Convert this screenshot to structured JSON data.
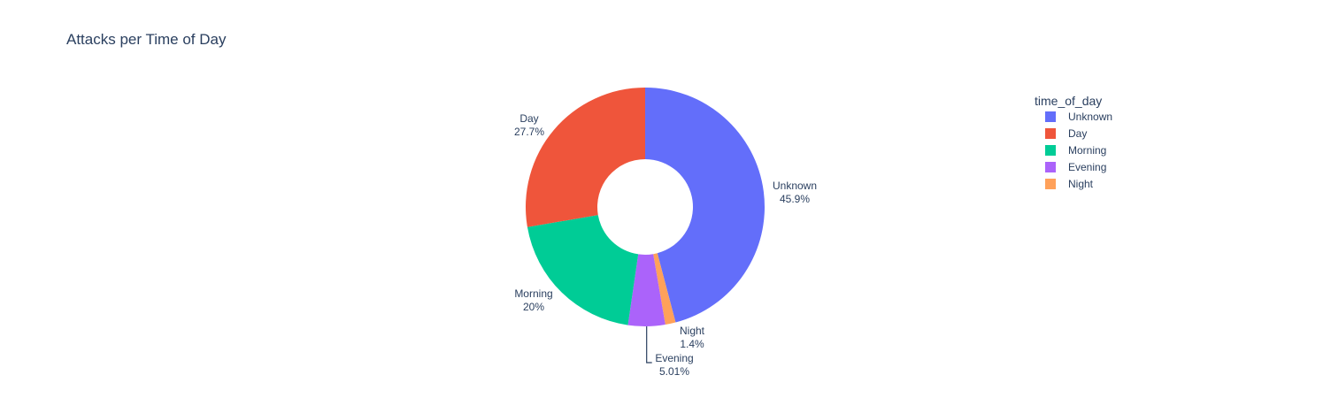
{
  "chart_data": {
    "type": "pie",
    "hole": true,
    "title": "Attacks per Time of Day",
    "legend": {
      "title": "time_of_day",
      "placement": "right"
    },
    "slices": [
      {
        "name": "Unknown",
        "value": 45.9,
        "label": "45.9%",
        "color": "#636efa"
      },
      {
        "name": "Night",
        "value": 1.4,
        "label": "1.4%",
        "color": "#ffa15a"
      },
      {
        "name": "Evening",
        "value": 5.01,
        "label": "5.01%",
        "color": "#ab63fa"
      },
      {
        "name": "Morning",
        "value": 20,
        "label": "20%",
        "color": "#00cc96"
      },
      {
        "name": "Day",
        "value": 27.7,
        "label": "27.7%",
        "color": "#ef553b"
      }
    ],
    "legend_order": [
      "Unknown",
      "Day",
      "Morning",
      "Evening",
      "Night"
    ]
  }
}
